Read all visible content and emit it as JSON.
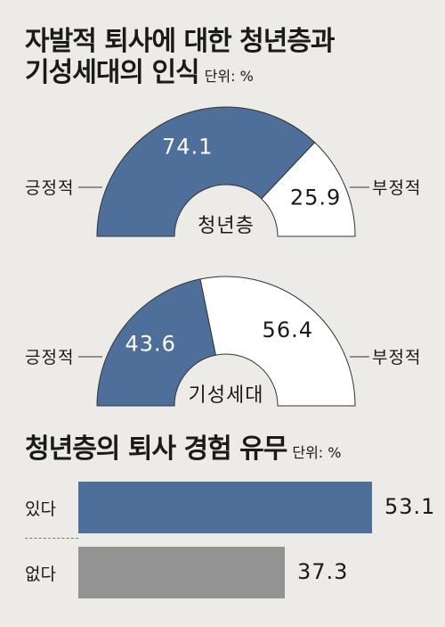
{
  "section1": {
    "title_line1": "자발적 퇴사에 대한 청년층과",
    "title_line2": "기성세대의 인식",
    "unit": "단위: %"
  },
  "section2": {
    "title": "청년층의 퇴사 경험 유무",
    "unit": "단위: %"
  },
  "colors": {
    "positive": "#4f6f9b",
    "negative": "#ffffff",
    "bar_yes": "#4f6f9b",
    "bar_no": "#939393",
    "outline": "#333333"
  },
  "chart_data": [
    {
      "type": "pie",
      "subtype": "semi-donut",
      "center_label": "청년층",
      "categories": [
        "긍정적",
        "부정적"
      ],
      "values": [
        74.1,
        25.9
      ],
      "value_labels": [
        "74.1",
        "25.9"
      ]
    },
    {
      "type": "pie",
      "subtype": "semi-donut",
      "center_label": "기성세대",
      "categories": [
        "긍정적",
        "부정적"
      ],
      "values": [
        43.6,
        56.4
      ],
      "value_labels": [
        "43.6",
        "56.4"
      ]
    },
    {
      "type": "bar",
      "orientation": "horizontal",
      "categories": [
        "있다",
        "없다"
      ],
      "values": [
        53.1,
        37.3
      ],
      "value_labels": [
        "53.1",
        "37.3"
      ]
    }
  ]
}
